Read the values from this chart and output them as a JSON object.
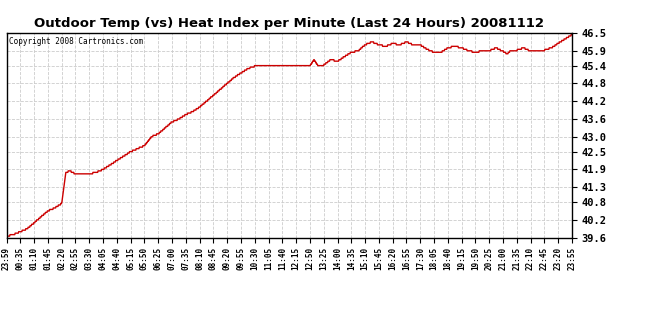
{
  "title": "Outdoor Temp (vs) Heat Index per Minute (Last 24 Hours) 20081112",
  "copyright": "Copyright 2008 Cartronics.com",
  "line_color": "#cc0000",
  "background_color": "#ffffff",
  "grid_color": "#cccccc",
  "ylim": [
    39.6,
    46.5
  ],
  "yticks": [
    39.6,
    40.2,
    40.8,
    41.3,
    41.9,
    42.5,
    43.0,
    43.6,
    44.2,
    44.8,
    45.4,
    45.9,
    46.5
  ],
  "xtick_labels": [
    "23:59",
    "00:35",
    "01:10",
    "01:45",
    "02:20",
    "02:55",
    "03:30",
    "04:05",
    "04:40",
    "05:15",
    "05:50",
    "06:25",
    "07:00",
    "07:35",
    "08:10",
    "08:45",
    "09:20",
    "09:55",
    "10:30",
    "11:05",
    "11:40",
    "12:15",
    "12:50",
    "13:25",
    "14:00",
    "14:35",
    "15:10",
    "15:45",
    "16:20",
    "16:55",
    "17:30",
    "18:05",
    "18:40",
    "19:15",
    "19:50",
    "20:25",
    "21:00",
    "21:35",
    "22:10",
    "22:45",
    "23:20",
    "23:55"
  ],
  "waypoints_x": [
    0,
    0.5,
    1.0,
    1.5,
    2.0,
    2.5,
    3.0,
    3.5,
    4.0,
    4.3,
    4.6,
    5.0,
    5.5,
    6.0,
    6.5,
    7.0,
    7.5,
    8.0,
    8.5,
    9.0,
    9.5,
    10.0,
    10.5,
    11.0,
    11.5,
    12.0,
    12.5,
    13.0,
    13.5,
    14.0,
    14.5,
    15.0,
    15.5,
    16.0,
    16.5,
    17.0,
    17.5,
    18.0,
    18.5,
    19.0,
    19.5,
    20.0,
    20.5,
    21.0,
    21.5,
    22.0,
    22.3,
    22.6,
    23.0,
    23.5,
    24.0,
    24.5,
    25.0,
    25.5,
    26.0,
    26.5,
    27.0,
    27.5,
    28.0,
    28.5,
    29.0,
    29.5,
    30.0,
    30.5,
    31.0,
    31.5,
    32.0,
    32.5,
    33.0,
    33.5,
    34.0,
    34.5,
    35.0,
    35.5,
    36.0,
    36.3,
    36.6,
    37.0,
    37.5,
    38.0,
    38.5,
    39.0,
    39.5,
    40.0,
    40.5,
    41.0
  ],
  "waypoints_y": [
    39.65,
    39.7,
    39.8,
    39.9,
    40.1,
    40.3,
    40.5,
    40.6,
    40.75,
    41.8,
    41.85,
    41.75,
    41.75,
    41.75,
    41.8,
    41.9,
    42.05,
    42.2,
    42.35,
    42.5,
    42.6,
    42.7,
    43.0,
    43.1,
    43.3,
    43.5,
    43.6,
    43.75,
    43.85,
    44.0,
    44.2,
    44.4,
    44.6,
    44.8,
    45.0,
    45.15,
    45.3,
    45.38,
    45.38,
    45.38,
    45.4,
    45.38,
    45.42,
    45.38,
    45.42,
    45.4,
    45.6,
    45.38,
    45.42,
    45.6,
    45.55,
    45.7,
    45.85,
    45.9,
    46.1,
    46.2,
    46.1,
    46.05,
    46.15,
    46.1,
    46.2,
    46.1,
    46.1,
    45.95,
    45.85,
    45.85,
    46.0,
    46.05,
    46.0,
    45.9,
    45.85,
    45.9,
    45.9,
    46.0,
    45.88,
    45.8,
    45.92,
    45.92,
    46.0,
    45.88,
    45.9,
    45.92,
    46.0,
    46.15,
    46.3,
    46.45
  ]
}
